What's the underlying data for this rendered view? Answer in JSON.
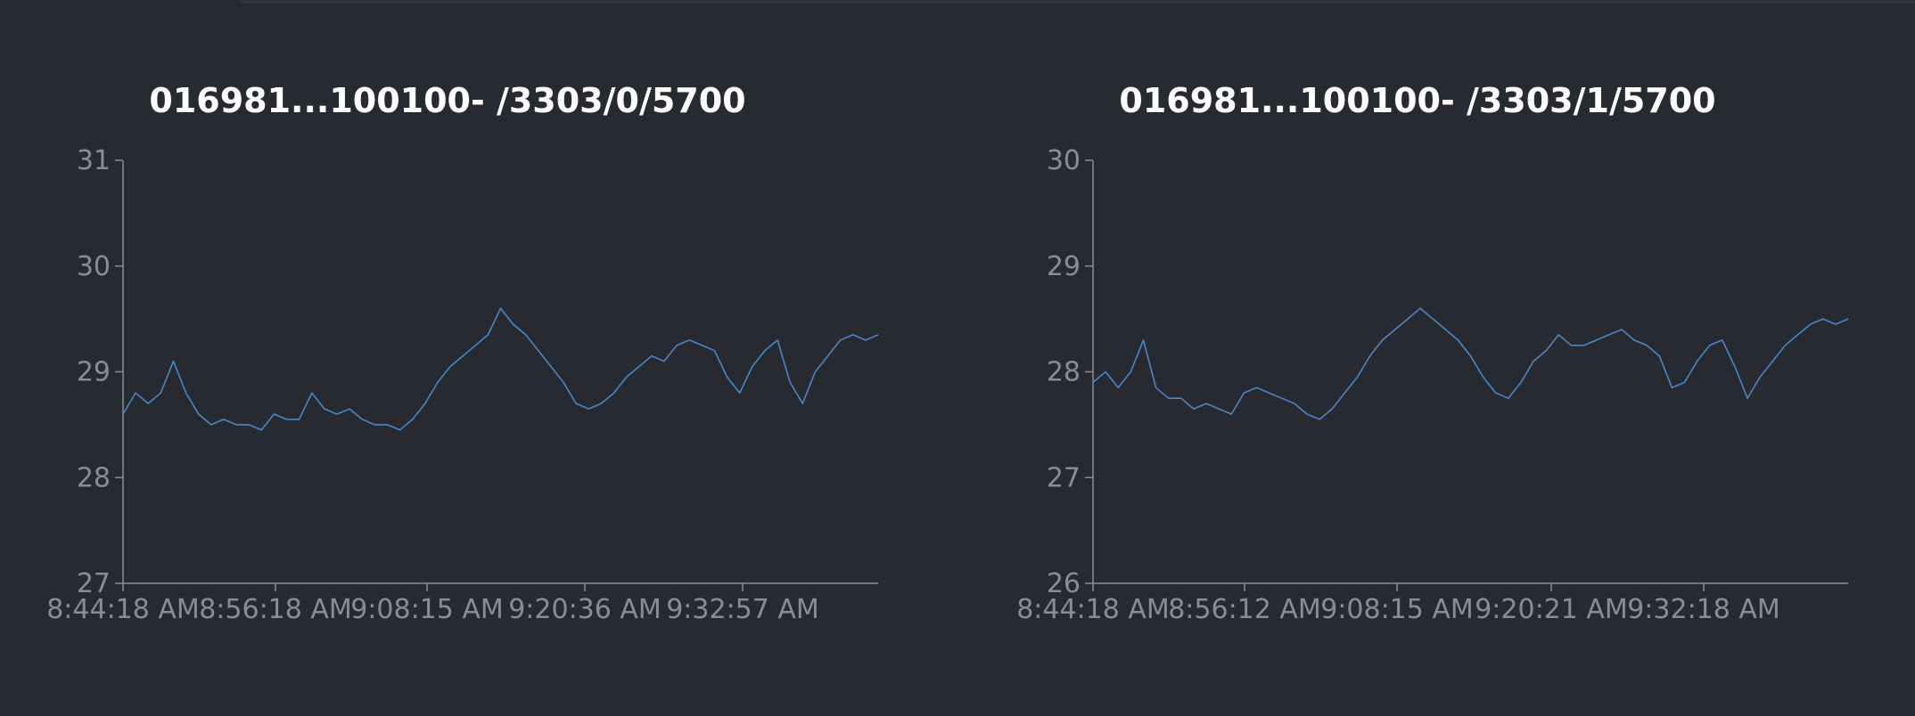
{
  "colors": {
    "background": "#272a31",
    "axis": "#8a8d92",
    "title": "#ffffff",
    "line": "#4a86c8"
  },
  "chart_data": [
    {
      "type": "line",
      "title": "016981...100100- /3303/0/5700",
      "xlabel": "",
      "ylabel": "",
      "ylim": [
        27,
        31
      ],
      "y_ticks": [
        27,
        28,
        29,
        30,
        31
      ],
      "x_tick_labels": [
        "8:44:18 AM",
        "8:56:18 AM",
        "9:08:15 AM",
        "9:20:36 AM",
        "9:32:57 AM"
      ],
      "x": [
        0,
        1,
        2,
        3,
        4,
        5,
        6,
        7,
        8,
        9,
        10,
        11,
        12,
        13,
        14,
        15,
        16,
        17,
        18,
        19,
        20,
        21,
        22,
        23,
        24,
        25,
        26,
        27,
        28,
        29,
        30,
        31,
        32,
        33,
        34,
        35,
        36,
        37,
        38,
        39,
        40,
        41,
        42,
        43,
        44,
        45,
        46,
        47,
        48,
        49,
        50,
        51,
        52,
        53,
        54,
        55,
        56,
        57,
        58,
        59,
        60
      ],
      "series": [
        {
          "values": [
            28.6,
            28.8,
            28.7,
            28.8,
            29.1,
            28.8,
            28.6,
            28.5,
            28.55,
            28.5,
            28.5,
            28.45,
            28.6,
            28.55,
            28.55,
            28.8,
            28.65,
            28.6,
            28.65,
            28.55,
            28.5,
            28.5,
            28.45,
            28.55,
            28.7,
            28.9,
            29.05,
            29.15,
            29.25,
            29.35,
            29.6,
            29.45,
            29.35,
            29.2,
            29.05,
            28.9,
            28.7,
            28.65,
            28.7,
            28.8,
            28.95,
            29.05,
            29.15,
            29.1,
            29.25,
            29.3,
            29.25,
            29.2,
            28.95,
            28.8,
            29.05,
            29.2,
            29.3,
            28.9,
            28.7,
            29.0,
            29.15,
            29.3,
            29.35,
            29.3,
            29.35
          ]
        }
      ]
    },
    {
      "type": "line",
      "title": "016981...100100- /3303/1/5700",
      "xlabel": "",
      "ylabel": "",
      "ylim": [
        26,
        30
      ],
      "y_ticks": [
        26,
        27,
        28,
        29,
        30
      ],
      "x_tick_labels": [
        "8:44:18 AM",
        "8:56:12 AM",
        "9:08:15 AM",
        "9:20:21 AM",
        "9:32:18 AM"
      ],
      "x": [
        0,
        1,
        2,
        3,
        4,
        5,
        6,
        7,
        8,
        9,
        10,
        11,
        12,
        13,
        14,
        15,
        16,
        17,
        18,
        19,
        20,
        21,
        22,
        23,
        24,
        25,
        26,
        27,
        28,
        29,
        30,
        31,
        32,
        33,
        34,
        35,
        36,
        37,
        38,
        39,
        40,
        41,
        42,
        43,
        44,
        45,
        46,
        47,
        48,
        49,
        50,
        51,
        52,
        53,
        54,
        55,
        56,
        57,
        58,
        59,
        60
      ],
      "series": [
        {
          "values": [
            27.9,
            28.0,
            27.85,
            28.0,
            28.3,
            27.85,
            27.75,
            27.75,
            27.65,
            27.7,
            27.65,
            27.6,
            27.8,
            27.85,
            27.8,
            27.75,
            27.7,
            27.6,
            27.55,
            27.65,
            27.8,
            27.95,
            28.15,
            28.3,
            28.4,
            28.5,
            28.6,
            28.5,
            28.4,
            28.3,
            28.15,
            27.95,
            27.8,
            27.75,
            27.9,
            28.1,
            28.2,
            28.35,
            28.25,
            28.25,
            28.3,
            28.35,
            28.4,
            28.3,
            28.25,
            28.15,
            27.85,
            27.9,
            28.1,
            28.25,
            28.3,
            28.05,
            27.75,
            27.95,
            28.1,
            28.25,
            28.35,
            28.45,
            28.5,
            28.45,
            28.5
          ]
        }
      ]
    }
  ]
}
